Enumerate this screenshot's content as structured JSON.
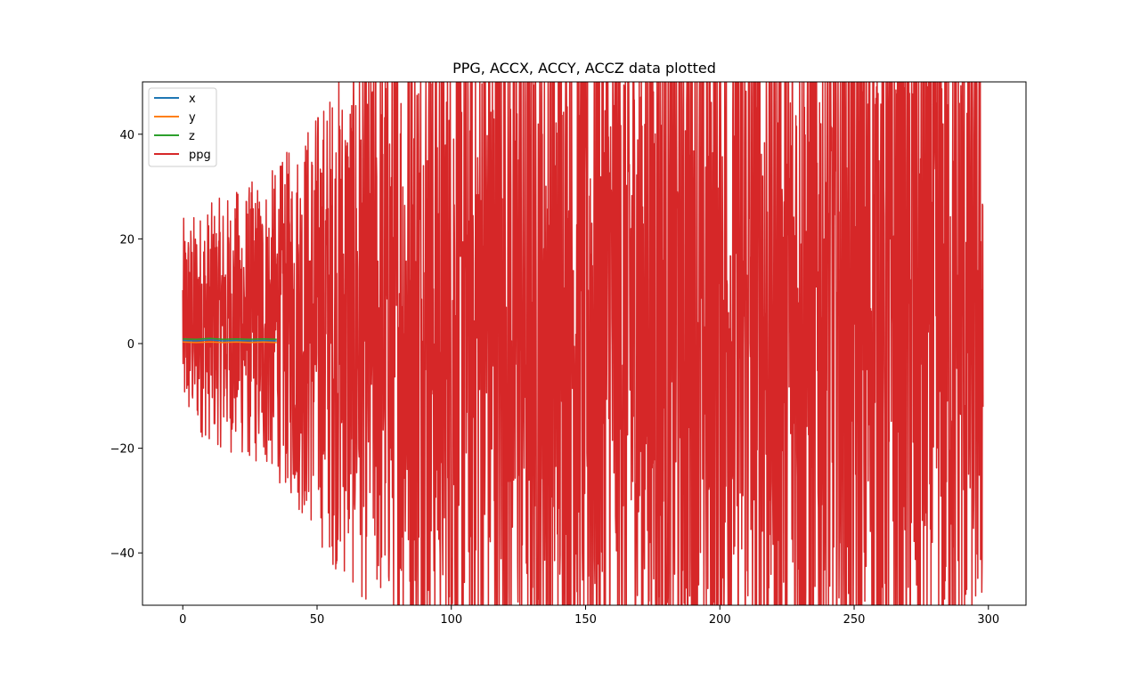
{
  "chart_data": {
    "type": "line",
    "title": "PPG, ACCX, ACCY, ACCZ data plotted",
    "xlabel": "",
    "ylabel": "",
    "xlim": [
      -15,
      314
    ],
    "ylim": [
      -50,
      50
    ],
    "x_ticks": [
      0,
      50,
      100,
      150,
      200,
      250,
      300
    ],
    "y_ticks": [
      -40,
      -20,
      0,
      20,
      40
    ],
    "x_tick_labels": [
      "0",
      "50",
      "100",
      "150",
      "200",
      "250",
      "300"
    ],
    "y_tick_labels": [
      "−40",
      "−20",
      "0",
      "20",
      "40"
    ],
    "grid": false,
    "legend_position": "top-left",
    "series": [
      {
        "name": "x",
        "color": "#1f77b4",
        "x": [
          0,
          5,
          10,
          15,
          20,
          25,
          30,
          35
        ],
        "y": [
          0.6,
          0.5,
          0.7,
          0.5,
          0.6,
          0.5,
          0.6,
          0.5
        ]
      },
      {
        "name": "y",
        "color": "#ff7f0e",
        "x": [
          0,
          5,
          10,
          15,
          20,
          25,
          30,
          35
        ],
        "y": [
          0.3,
          0.2,
          0.3,
          0.2,
          0.3,
          0.2,
          0.3,
          0.2
        ]
      },
      {
        "name": "z",
        "color": "#2ca02c",
        "x": [
          0,
          5,
          10,
          15,
          20,
          25,
          30,
          35
        ],
        "y": [
          0.9,
          0.8,
          1.0,
          0.8,
          0.9,
          0.8,
          0.9,
          0.8
        ]
      },
      {
        "name": "ppg",
        "color": "#d62728",
        "x_range": [
          0,
          298
        ],
        "y_clip": [
          -50,
          50
        ],
        "approx_amplitude": [
          {
            "x": 0,
            "half_range": 20
          },
          {
            "x": 35,
            "half_range": 30
          },
          {
            "x": 60,
            "half_range": 50
          },
          {
            "x": 100,
            "half_range": 70
          },
          {
            "x": 280,
            "half_range": 75
          },
          {
            "x": 298,
            "half_range": 60
          }
        ]
      }
    ]
  }
}
